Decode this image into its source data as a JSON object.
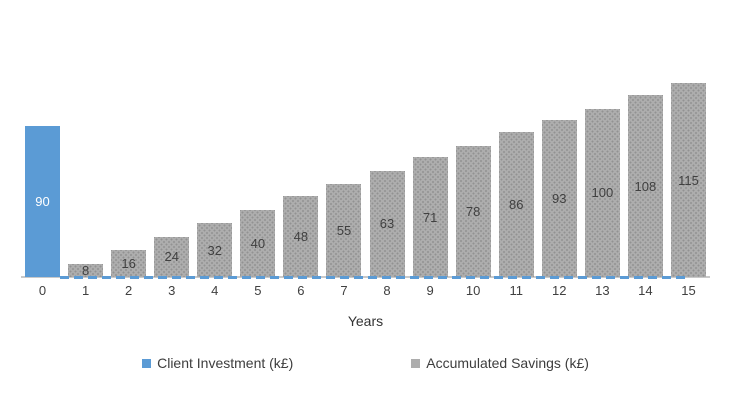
{
  "chart_data": {
    "type": "bar",
    "title": "",
    "xlabel": "Years",
    "ylabel": "",
    "ylim": [
      0,
      120
    ],
    "gridlines": false,
    "legend_position": "bottom",
    "categories": [
      "0",
      "1",
      "2",
      "3",
      "4",
      "5",
      "6",
      "7",
      "8",
      "9",
      "10",
      "11",
      "12",
      "13",
      "14",
      "15"
    ],
    "series": [
      {
        "name": "Client Investment (k£)",
        "color": "#5B9BD5",
        "pattern": "solid",
        "label_color": "#FFFFFF",
        "values": [
          90,
          null,
          null,
          null,
          null,
          null,
          null,
          null,
          null,
          null,
          null,
          null,
          null,
          null,
          null,
          null
        ]
      },
      {
        "name": "Accumulated Savings (k£)",
        "color": "#ADADAD",
        "pattern": "dotted",
        "label_color": "#404040",
        "values": [
          null,
          8,
          16,
          24,
          32,
          40,
          48,
          55,
          63,
          71,
          78,
          86,
          93,
          100,
          108,
          115
        ]
      }
    ],
    "baseline_dash_line": {
      "color": "#5B9BD5",
      "style": "dashed",
      "y": 0
    },
    "axis_line_color": "#C9C9C9"
  }
}
